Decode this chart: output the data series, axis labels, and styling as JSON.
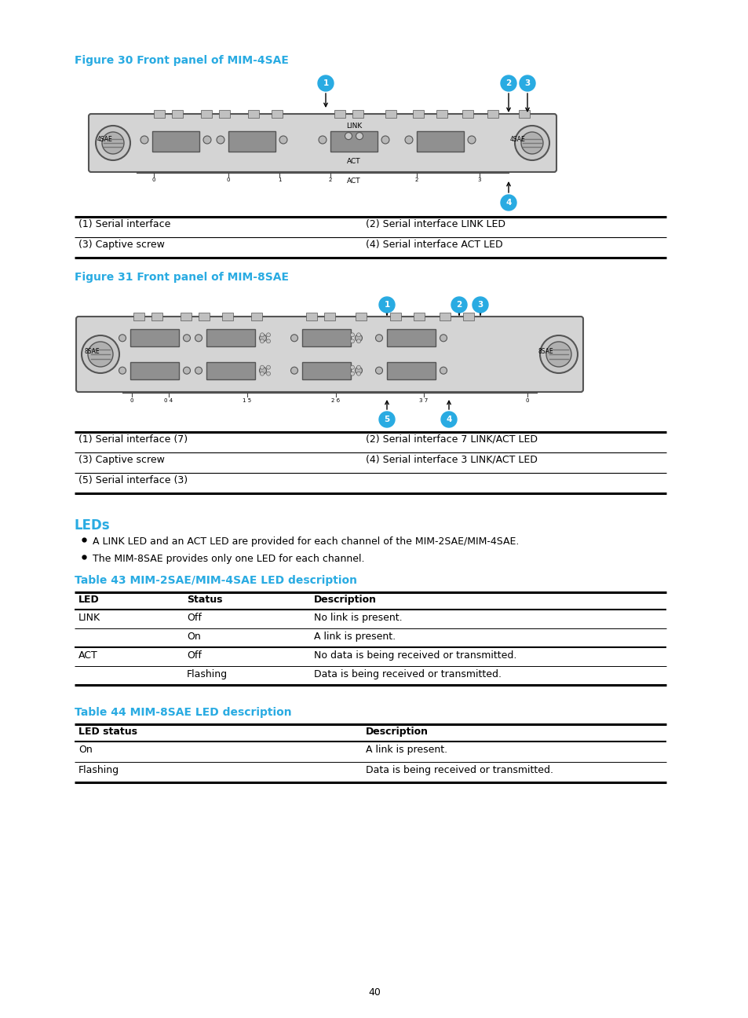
{
  "bg_color": "#ffffff",
  "cyan_color": "#29abe2",
  "black": "#000000",
  "gray_panel": "#d4d4d4",
  "gray_dark": "#888888",
  "gray_medium": "#aaaaaa",
  "gray_border": "#555555",
  "page_number": "40",
  "fig30_title": "Figure 30 Front panel of MIM-4SAE",
  "fig31_title": "Figure 31 Front panel of MIM-8SAE",
  "leds_heading": "LEDs",
  "bullet1": "A LINK LED and an ACT LED are provided for each channel of the MIM-2SAE/MIM-4SAE.",
  "bullet2": "The MIM-8SAE provides only one LED for each channel.",
  "table43_title": "Table 43 MIM-2SAE/MIM-4SAE LED description",
  "table44_title": "Table 44 MIM-8SAE LED description",
  "table43_headers": [
    "LED",
    "Status",
    "Description"
  ],
  "table43_rows": [
    [
      "LINK",
      "Off",
      "No link is present."
    ],
    [
      "",
      "On",
      "A link is present."
    ],
    [
      "ACT",
      "Off",
      "No data is being received or transmitted."
    ],
    [
      "",
      "Flashing",
      "Data is being received or transmitted."
    ]
  ],
  "table44_headers": [
    "LED status",
    "Description"
  ],
  "table44_rows": [
    [
      "On",
      "A link is present."
    ],
    [
      "Flashing",
      "Data is being received or transmitted."
    ]
  ],
  "fig30_captions": [
    [
      "(1) Serial interface",
      "(2) Serial interface LINK LED"
    ],
    [
      "(3) Captive screw",
      "(4) Serial interface ACT LED"
    ]
  ],
  "fig31_captions": [
    [
      "(1) Serial interface (7)",
      "(2) Serial interface 7 LINK/ACT LED"
    ],
    [
      "(3) Captive screw",
      "(4) Serial interface 3 LINK/ACT LED"
    ],
    [
      "(5) Serial interface (3)",
      ""
    ]
  ]
}
